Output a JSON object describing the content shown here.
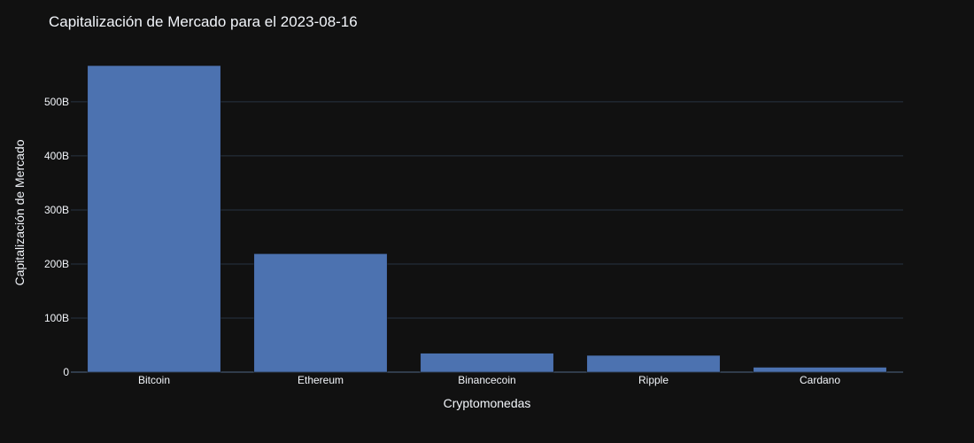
{
  "chart_data": {
    "type": "bar",
    "title": "Capitalización de Mercado para el  2023-08-16",
    "xlabel": "Cryptomonedas",
    "ylabel": "Capitalización de Mercado",
    "categories": [
      "Bitcoin",
      "Ethereum",
      "Binancecoin",
      "Ripple",
      "Cardano"
    ],
    "values": [
      567,
      219,
      35,
      31,
      9
    ],
    "value_unit": "B",
    "ylim": [
      0,
      590
    ],
    "yticks": [
      0,
      100,
      200,
      300,
      400,
      500
    ],
    "ytick_labels": [
      "0",
      "100B",
      "200B",
      "300B",
      "400B",
      "500B"
    ],
    "grid": true,
    "legend": "none",
    "colors": {
      "bar": "#4c72b0",
      "background": "#111111",
      "grid": "#283442",
      "text": "#f2f5fa"
    }
  }
}
